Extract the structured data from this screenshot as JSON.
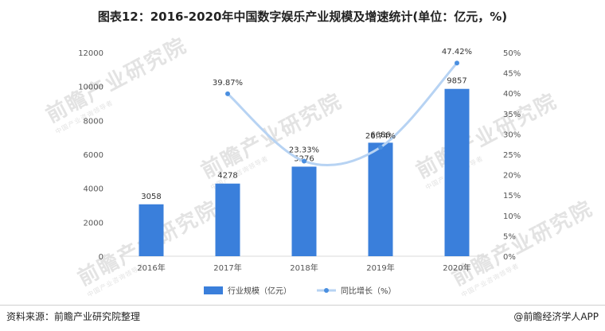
{
  "title": "图表12：2016-2020年中国数字娱乐产业规模及增速统计(单位：亿元，%)",
  "footer": {
    "source": "资料来源：前瞻产业研究院整理",
    "brand": "@前瞻经济学人APP"
  },
  "watermark": {
    "text": "前瞻产业研究院",
    "sub": "中国产业咨询领导者"
  },
  "colors": {
    "bar": "#3a7fdb",
    "line": "#b7d3f3",
    "point": "#4a8fe0",
    "axis_text": "#555555"
  },
  "chart_data": {
    "type": "bar",
    "categories": [
      "2016年",
      "2017年",
      "2018年",
      "2019年",
      "2020年"
    ],
    "series": [
      {
        "name": "行业规模（亿元）",
        "type": "bar",
        "axis": "left",
        "values": [
          3058,
          4278,
          5276,
          6686,
          9857
        ],
        "labels": [
          "3058",
          "4278",
          "5276",
          "6686",
          "9857"
        ]
      },
      {
        "name": "同比增长（%）",
        "type": "line",
        "axis": "right",
        "smooth": true,
        "values": [
          null,
          39.87,
          23.33,
          26.74,
          47.42
        ],
        "labels": [
          "",
          "39.87%",
          "23.33%",
          "26.74%",
          "47.42%"
        ]
      }
    ],
    "y_left": {
      "min": 0,
      "max": 12000,
      "ticks": [
        "0",
        "2000",
        "4000",
        "6000",
        "8000",
        "10000",
        "12000"
      ]
    },
    "y_right": {
      "min": 0,
      "max": 50,
      "ticks": [
        "0%",
        "5%",
        "10%",
        "15%",
        "20%",
        "25%",
        "30%",
        "35%",
        "40%",
        "45%",
        "50%"
      ]
    },
    "grid": false,
    "legend_position": "bottom-center"
  }
}
